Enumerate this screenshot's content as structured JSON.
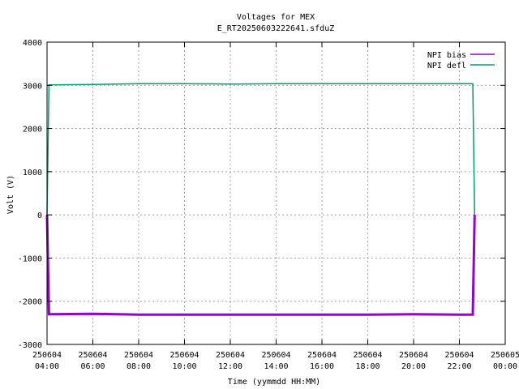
{
  "chart_data": {
    "type": "line",
    "title": "Voltages for MEX",
    "subtitle": "E_RT20250603222641.sfduZ",
    "xlabel": "Time (yymmdd HH:MM)",
    "ylabel": "Volt (V)",
    "xlim": [
      "250604 04:00",
      "250605 00:00"
    ],
    "ylim": [
      -3000,
      4000
    ],
    "grid": true,
    "legend_position": "top-right",
    "y_ticks": [
      "-3000",
      "-2000",
      "-1000",
      "0",
      "1000",
      "2000",
      "3000",
      "4000"
    ],
    "x_ticks": [
      {
        "date": "250604",
        "time": "04:00"
      },
      {
        "date": "250604",
        "time": "06:00"
      },
      {
        "date": "250604",
        "time": "08:00"
      },
      {
        "date": "250604",
        "time": "10:00"
      },
      {
        "date": "250604",
        "time": "12:00"
      },
      {
        "date": "250604",
        "time": "14:00"
      },
      {
        "date": "250604",
        "time": "16:00"
      },
      {
        "date": "250604",
        "time": "18:00"
      },
      {
        "date": "250604",
        "time": "20:00"
      },
      {
        "date": "250604",
        "time": "22:00"
      },
      {
        "date": "250605",
        "time": "00:00"
      }
    ],
    "series": [
      {
        "name": "NPI bias",
        "color": "#9400d3",
        "points": [
          [
            "250604 04:00",
            0
          ],
          [
            "250604 04:05",
            -2300
          ],
          [
            "250604 06:00",
            -2290
          ],
          [
            "250604 08:00",
            -2310
          ],
          [
            "250604 10:00",
            -2310
          ],
          [
            "250604 12:00",
            -2310
          ],
          [
            "250604 14:00",
            -2310
          ],
          [
            "250604 16:00",
            -2310
          ],
          [
            "250604 18:00",
            -2310
          ],
          [
            "250604 20:00",
            -2300
          ],
          [
            "250604 22:00",
            -2310
          ],
          [
            "250604 22:35",
            -2310
          ],
          [
            "250604 22:40",
            0
          ]
        ]
      },
      {
        "name": "NPI defl",
        "color": "#009e73",
        "points": [
          [
            "250604 04:00",
            0
          ],
          [
            "250604 04:05",
            3010
          ],
          [
            "250604 06:00",
            3020
          ],
          [
            "250604 08:00",
            3040
          ],
          [
            "250604 10:00",
            3040
          ],
          [
            "250604 12:00",
            3030
          ],
          [
            "250604 14:00",
            3040
          ],
          [
            "250604 16:00",
            3040
          ],
          [
            "250604 18:00",
            3040
          ],
          [
            "250604 20:00",
            3040
          ],
          [
            "250604 22:00",
            3040
          ],
          [
            "250604 22:35",
            3040
          ],
          [
            "250604 22:40",
            0
          ]
        ]
      }
    ]
  }
}
